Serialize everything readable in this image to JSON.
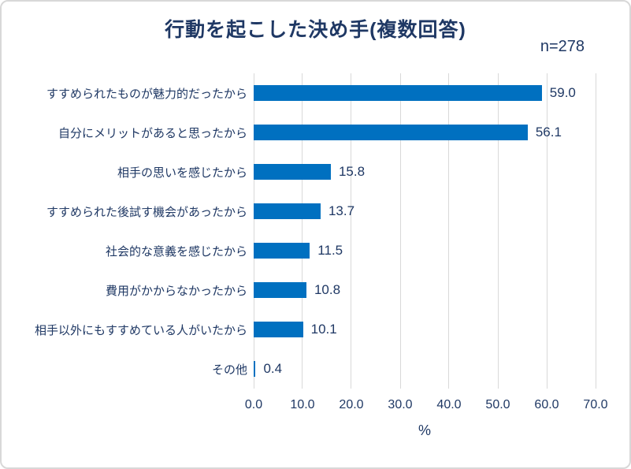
{
  "title": "行動を起こした決め手(複数回答)",
  "n_label": "n=278",
  "chart_data": {
    "type": "bar",
    "orientation": "horizontal",
    "title": "行動を起こした決め手(複数回答)",
    "sample_size": "n=278",
    "categories": [
      "すすめられたものが魅力的だったから",
      "自分にメリットがあると思ったから",
      "相手の思いを感じたから",
      "すすめられた後試す機会があったから",
      "社会的な意義を感じたから",
      "費用がかからなかったから",
      "相手以外にもすすめている人がいたから",
      "その他"
    ],
    "values": [
      59.0,
      56.1,
      15.8,
      13.7,
      11.5,
      10.8,
      10.1,
      0.4
    ],
    "value_labels": [
      "59.0",
      "56.1",
      "15.8",
      "13.7",
      "11.5",
      "10.8",
      "10.1",
      "0.4"
    ],
    "xlabel": "%",
    "xlim": [
      0,
      70
    ],
    "xticks": [
      "0.0",
      "10.0",
      "20.0",
      "30.0",
      "40.0",
      "50.0",
      "60.0",
      "70.0"
    ],
    "grid": true,
    "legend": "none",
    "bar_color": "#0070c0",
    "text_color": "#1f3864",
    "gridline_color": "#d9d9d9",
    "frame_border_color": "#d8d8d8"
  }
}
